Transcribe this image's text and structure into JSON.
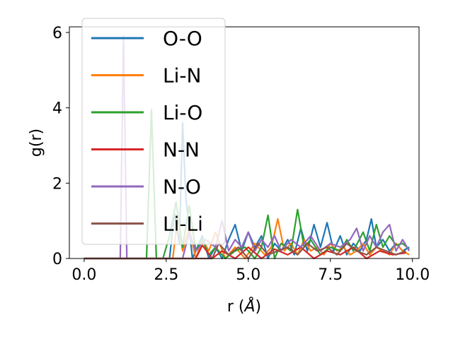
{
  "chart_data": {
    "type": "line",
    "xlabel_prefix": "r (",
    "xlabel_unit": "Å",
    "xlabel_suffix": ")",
    "ylabel": "g(r)",
    "xlim": [
      -0.45,
      10.2
    ],
    "ylim": [
      0,
      6.15
    ],
    "xticks": [
      0.0,
      2.5,
      5.0,
      7.5,
      10.0
    ],
    "xtick_labels": [
      "0.0",
      "2.5",
      "5.0",
      "7.5",
      "10.0"
    ],
    "yticks": [
      0,
      2,
      4,
      6
    ],
    "ytick_labels": [
      "0",
      "2",
      "4",
      "6"
    ],
    "grid": false,
    "legend_position": "upper-left",
    "series": [
      {
        "name": "O-O",
        "color": "#1f77b4",
        "x": [
          0.0,
          2.6,
          2.75,
          2.9,
          3.0,
          3.1,
          3.3,
          3.6,
          3.8,
          4.0,
          4.2,
          4.4,
          4.6,
          4.8,
          5.0,
          5.2,
          5.4,
          5.6,
          5.8,
          6.0,
          6.2,
          6.4,
          6.6,
          6.8,
          7.0,
          7.2,
          7.4,
          7.6,
          7.8,
          8.0,
          8.2,
          8.4,
          8.6,
          8.75,
          8.9,
          9.1,
          9.3,
          9.5,
          9.7,
          9.9
        ],
        "y": [
          0.0,
          0.0,
          1.2,
          0.4,
          3.6,
          1.6,
          0.0,
          0.6,
          0.0,
          0.3,
          0.0,
          0.5,
          0.9,
          0.2,
          0.7,
          0.3,
          0.6,
          0.0,
          0.4,
          0.2,
          0.5,
          0.1,
          0.8,
          0.2,
          0.9,
          0.3,
          0.95,
          0.2,
          0.6,
          0.1,
          0.4,
          0.2,
          0.5,
          1.05,
          0.3,
          0.5,
          0.2,
          0.4,
          0.2,
          0.3
        ]
      },
      {
        "name": "Li-N",
        "color": "#ff7f0e",
        "x": [
          0.0,
          2.7,
          2.85,
          3.0,
          3.2,
          3.4,
          3.6,
          3.8,
          4.0,
          4.3,
          4.6,
          4.9,
          5.2,
          5.5,
          5.7,
          5.9,
          6.1,
          6.3,
          6.5,
          6.7,
          6.9,
          7.1,
          7.3,
          7.5,
          7.7,
          7.9,
          8.1,
          8.3,
          8.5,
          8.7,
          8.9,
          9.1,
          9.3,
          9.5,
          9.7,
          9.9
        ],
        "y": [
          0.0,
          0.0,
          1.1,
          0.2,
          0.8,
          0.0,
          0.5,
          0.2,
          0.7,
          0.0,
          0.3,
          0.0,
          0.4,
          0.1,
          0.3,
          1.05,
          0.2,
          0.4,
          0.1,
          0.5,
          0.2,
          0.3,
          0.1,
          0.4,
          0.2,
          0.3,
          0.1,
          0.2,
          0.4,
          0.1,
          0.3,
          0.2,
          0.1,
          0.4,
          0.2,
          0.1
        ]
      },
      {
        "name": "Li-O",
        "color": "#2ca02c",
        "x": [
          0.0,
          1.9,
          2.05,
          2.2,
          2.4,
          2.6,
          2.8,
          3.0,
          3.2,
          3.4,
          3.6,
          3.8,
          4.0,
          4.3,
          4.6,
          4.9,
          5.2,
          5.4,
          5.6,
          5.8,
          6.0,
          6.3,
          6.5,
          6.7,
          6.9,
          7.2,
          7.5,
          7.8,
          8.0,
          8.2,
          8.5,
          8.7,
          8.9,
          9.1,
          9.3,
          9.5,
          9.7,
          9.9
        ],
        "y": [
          0.0,
          0.0,
          3.95,
          0.0,
          0.0,
          0.6,
          1.5,
          0.3,
          1.4,
          0.2,
          0.5,
          0.1,
          0.3,
          0.0,
          0.2,
          0.3,
          0.0,
          0.3,
          1.15,
          0.0,
          0.4,
          0.2,
          1.3,
          0.3,
          0.5,
          0.1,
          0.3,
          0.2,
          0.5,
          0.2,
          0.7,
          0.2,
          0.9,
          0.3,
          0.6,
          0.35,
          0.4,
          0.25
        ]
      },
      {
        "name": "N-N",
        "color": "#d62728",
        "x": [
          0.0,
          3.4,
          3.6,
          3.9,
          4.2,
          4.6,
          5.0,
          5.4,
          5.8,
          6.2,
          6.6,
          7.0,
          7.4,
          7.8,
          8.2,
          8.6,
          9.0,
          9.4,
          9.8
        ],
        "y": [
          0.0,
          0.0,
          0.35,
          0.0,
          0.2,
          0.0,
          0.3,
          0.0,
          0.25,
          0.1,
          0.3,
          0.0,
          0.2,
          0.1,
          0.3,
          0.0,
          0.2,
          0.1,
          0.15
        ]
      },
      {
        "name": "N-O",
        "color": "#9467bd",
        "x": [
          0.0,
          1.1,
          1.2,
          1.3,
          3.0,
          3.2,
          3.4,
          3.7,
          4.0,
          4.2,
          4.4,
          4.6,
          4.8,
          5.0,
          5.2,
          5.4,
          5.6,
          5.8,
          6.0,
          6.3,
          6.6,
          6.9,
          7.2,
          7.5,
          7.8,
          8.1,
          8.3,
          8.5,
          8.7,
          8.9,
          9.1,
          9.3,
          9.5,
          9.7,
          9.9
        ],
        "y": [
          0.0,
          0.0,
          5.9,
          0.0,
          0.0,
          0.7,
          0.2,
          0.5,
          0.3,
          1.0,
          0.2,
          0.5,
          0.3,
          0.7,
          0.2,
          0.5,
          0.3,
          0.6,
          0.2,
          0.5,
          0.3,
          0.6,
          0.2,
          0.4,
          0.3,
          0.5,
          0.8,
          0.2,
          0.6,
          0.3,
          0.7,
          0.9,
          0.2,
          0.5,
          0.2
        ]
      },
      {
        "name": "Li-Li",
        "color": "#8c564b",
        "x": [
          0.0,
          3.9,
          4.1,
          4.4,
          4.7,
          5.0,
          5.3,
          5.6,
          5.9,
          6.2,
          6.5,
          6.8,
          7.1,
          7.4,
          7.7,
          8.0,
          8.3,
          8.6,
          8.9,
          9.2,
          9.5,
          9.8
        ],
        "y": [
          0.0,
          0.0,
          0.4,
          0.1,
          0.3,
          0.0,
          0.4,
          0.1,
          0.2,
          0.3,
          0.1,
          0.4,
          0.2,
          0.3,
          0.1,
          0.4,
          0.2,
          0.1,
          0.3,
          0.2,
          0.1,
          0.2
        ]
      }
    ]
  }
}
